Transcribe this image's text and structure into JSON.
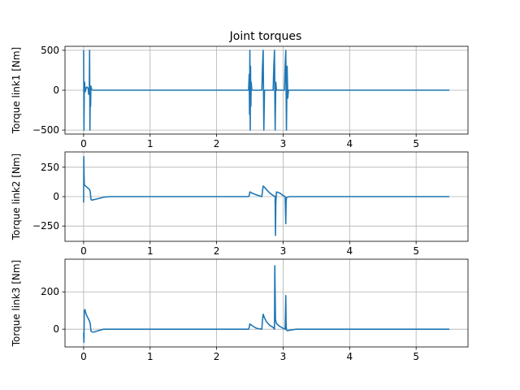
{
  "chart_data": {
    "type": "line",
    "title": "Joint torques",
    "grid": true,
    "line_color": "#1f77b4",
    "xlim": [
      -0.28,
      5.78
    ],
    "xticks": [
      0,
      1,
      2,
      3,
      4,
      5
    ],
    "subplots": [
      {
        "ylabel": "Torque link1 [Nm]",
        "ylim": [
          -550,
          550
        ],
        "yticks": [
          -500,
          0,
          500
        ],
        "series": [
          {
            "x": [
              0.0,
              0.005,
              0.01,
              0.015,
              0.02,
              0.025,
              0.03,
              0.04,
              0.05,
              0.06,
              0.07,
              0.075,
              0.08,
              0.085,
              0.09,
              0.095,
              0.1,
              0.105,
              0.11,
              0.12,
              0.14,
              0.18,
              0.3,
              1.0,
              2.0,
              2.48,
              2.49,
              2.495,
              2.5,
              2.505,
              2.51,
              2.515,
              2.52,
              2.53,
              2.56,
              2.68,
              2.69,
              2.7,
              2.71,
              2.72,
              2.75,
              2.85,
              2.86,
              2.87,
              2.88,
              2.89,
              2.9,
              2.92,
              2.95,
              3.02,
              3.03,
              3.04,
              3.05,
              3.06,
              3.07,
              3.08,
              3.12,
              3.5,
              4.0,
              4.5,
              5.0,
              5.5
            ],
            "y": [
              500,
              -500,
              0,
              100,
              30,
              -20,
              10,
              30,
              40,
              30,
              20,
              -50,
              20,
              -50,
              500,
              -500,
              0,
              -200,
              50,
              10,
              0,
              0,
              0,
              0,
              0,
              0,
              200,
              -300,
              500,
              -500,
              300,
              -200,
              100,
              0,
              0,
              0,
              300,
              500,
              -500,
              0,
              0,
              0,
              300,
              500,
              -500,
              100,
              0,
              0,
              0,
              0,
              300,
              500,
              -500,
              300,
              -100,
              0,
              0,
              0,
              0,
              0,
              0,
              0
            ]
          }
        ]
      },
      {
        "ylabel": "Torque link2 [Nm]",
        "ylim": [
          -380,
          380
        ],
        "yticks": [
          -250,
          0,
          250
        ],
        "series": [
          {
            "x": [
              0.0,
              0.003,
              0.006,
              0.01,
              0.02,
              0.05,
              0.09,
              0.1,
              0.11,
              0.12,
              0.2,
              0.3,
              0.4,
              0.5,
              1.0,
              2.0,
              2.48,
              2.49,
              2.5,
              2.55,
              2.6,
              2.68,
              2.69,
              2.7,
              2.72,
              2.75,
              2.8,
              2.85,
              2.88,
              2.885,
              2.89,
              2.9,
              2.95,
              3.0,
              3.03,
              3.04,
              3.045,
              3.05,
              3.06,
              3.1,
              3.5,
              4.0,
              4.5,
              5.0,
              5.5
            ],
            "y": [
              -50,
              340,
              200,
              100,
              95,
              80,
              60,
              40,
              -20,
              -30,
              -20,
              -5,
              0,
              0,
              0,
              0,
              0,
              10,
              40,
              25,
              15,
              0,
              50,
              90,
              80,
              60,
              30,
              10,
              0,
              -330,
              -50,
              40,
              30,
              10,
              0,
              -230,
              -50,
              -10,
              -5,
              0,
              0,
              0,
              0,
              0,
              0
            ]
          }
        ]
      },
      {
        "ylabel": "Torque link3 [Nm]",
        "ylim": [
          -95,
          375
        ],
        "yticks": [
          0,
          200
        ],
        "series": [
          {
            "x": [
              0.0,
              0.005,
              0.01,
              0.02,
              0.03,
              0.05,
              0.08,
              0.1,
              0.11,
              0.13,
              0.16,
              0.2,
              0.3,
              0.4,
              0.5,
              1.0,
              2.0,
              2.48,
              2.49,
              2.5,
              2.55,
              2.6,
              2.68,
              2.69,
              2.7,
              2.72,
              2.75,
              2.8,
              2.85,
              2.87,
              2.875,
              2.88,
              2.885,
              2.9,
              2.95,
              3.0,
              3.03,
              3.04,
              3.045,
              3.05,
              3.07,
              3.1,
              3.2,
              3.5,
              4.0,
              4.5,
              5.0,
              5.5
            ],
            "y": [
              -20,
              -70,
              100,
              105,
              90,
              70,
              50,
              30,
              -10,
              -15,
              -15,
              -10,
              0,
              0,
              0,
              0,
              0,
              0,
              10,
              28,
              15,
              5,
              0,
              50,
              80,
              60,
              40,
              20,
              10,
              0,
              340,
              200,
              50,
              30,
              15,
              5,
              0,
              180,
              30,
              -5,
              -8,
              -5,
              0,
              0,
              0,
              0,
              0,
              0
            ]
          }
        ]
      }
    ]
  }
}
